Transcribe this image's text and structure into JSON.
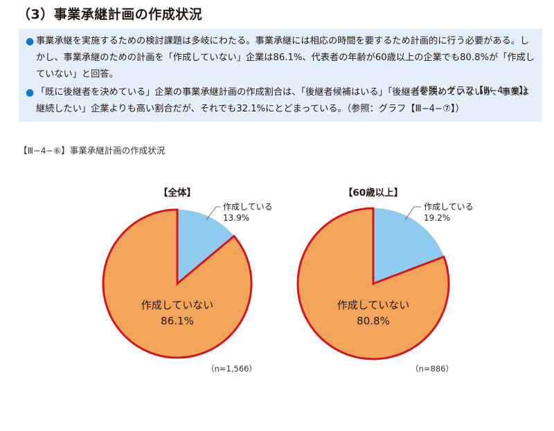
{
  "heading": "（3）事業承継計画の作成状況",
  "summary": {
    "bullets": [
      {
        "text": "事業承継を実施するための検討課題は多岐にわたる。事業承継には相応の時間を要するため計画的に行う必要がある。しかし、事業承継のための計画を「作成していない」企業は86.1%、代表者の年齢が60歳以上の企業でも80.8%が「作成していない」と回答。",
        "reference": "（参照：グラフ【Ⅲ−4−⑥】）"
      },
      {
        "text": "「既に後継者を決めている」企業の事業承継計画の作成割合は、「後継者候補はいる」「後継者を決めていないが、事業は継続したい」企業よりも高い割合だが、それでも32.1%にとどまっている。（参照：グラフ【Ⅲ−4−⑦】）"
      }
    ],
    "bullet_color": "#0a7ac7",
    "background": "#e3eef8"
  },
  "figure_caption": "【Ⅲ−4−⑥】事業承継計画の作成状況",
  "colors": {
    "created": "#8ecbee",
    "not_created": "#f2a55a",
    "border": "#d7141e"
  },
  "chart_data": [
    {
      "type": "pie",
      "title": "【全体】",
      "categories": [
        "作成している",
        "作成していない"
      ],
      "values": [
        13.9,
        86.1
      ],
      "labels": [
        "13.9%",
        "86.1%"
      ],
      "n": "（n=1,566）"
    },
    {
      "type": "pie",
      "title": "【60歳以上】",
      "categories": [
        "作成している",
        "作成していない"
      ],
      "values": [
        19.2,
        80.8
      ],
      "labels": [
        "19.2%",
        "80.8%"
      ],
      "n": "（n=886）"
    }
  ]
}
